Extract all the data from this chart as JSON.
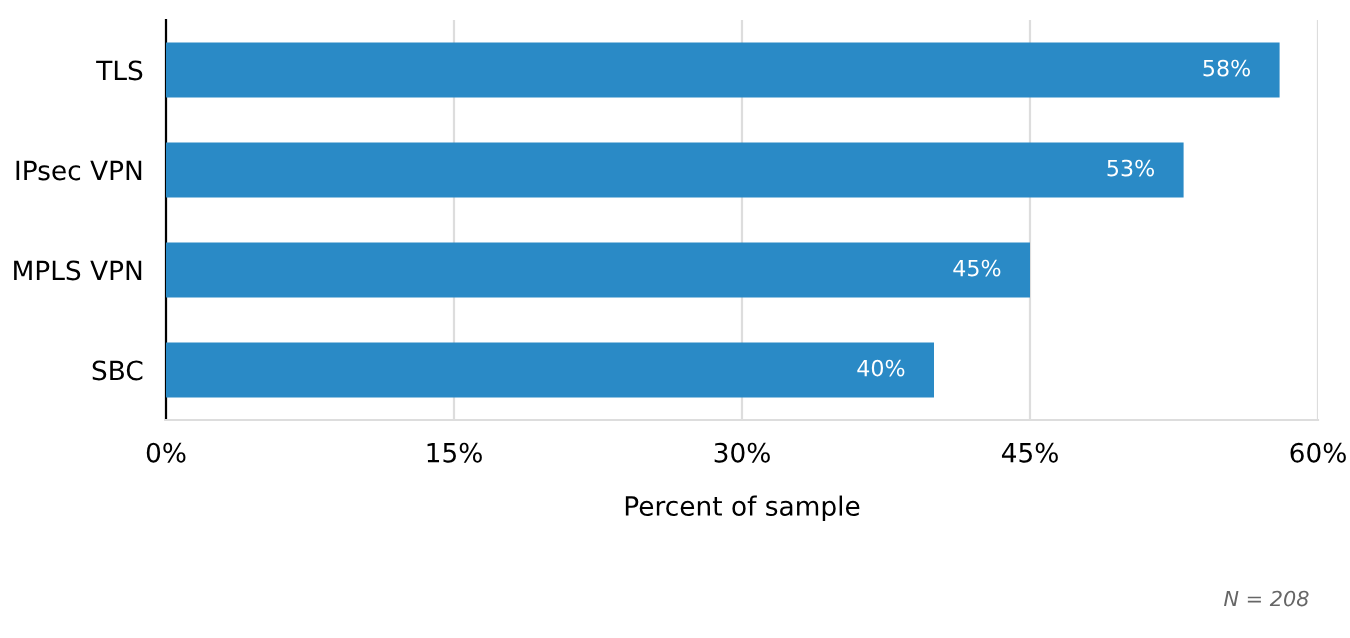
{
  "chart_data": {
    "type": "bar",
    "orientation": "horizontal",
    "xlabel": "Percent of sample",
    "categories": [
      "TLS",
      "IPsec VPN",
      "MPLS VPN",
      "SBC"
    ],
    "values": [
      58,
      53,
      45,
      40
    ],
    "value_labels": [
      "58%",
      "53%",
      "45%",
      "40%"
    ],
    "color": "#2a8ac6",
    "xlim": [
      0,
      60
    ],
    "xticks": [
      {
        "value": 0,
        "label": "0%"
      },
      {
        "value": 15,
        "label": "15%"
      },
      {
        "value": 30,
        "label": "30%"
      },
      {
        "value": 45,
        "label": "45%"
      },
      {
        "value": 60,
        "label": "60%"
      }
    ],
    "grid": "x",
    "annotations": [
      "N = 208"
    ]
  }
}
